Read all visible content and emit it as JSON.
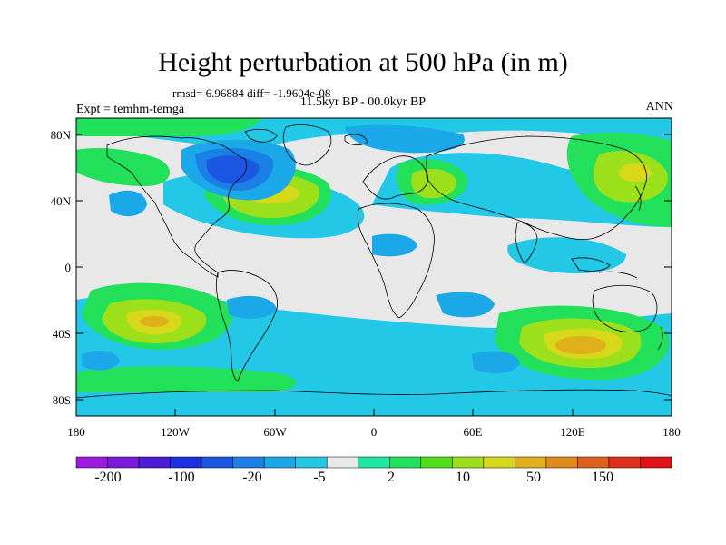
{
  "map": {
    "title": "Height perturbation at 500 hPa (in m)",
    "stats": "rmsd= 6.96884 diff= -1.9604e-08",
    "subtitle": "11.5kyr BP - 00.0kyr BP",
    "left_label": "Expt = temhm-temga",
    "right_label": "ANN",
    "lat_labels": [
      "80N",
      "40N",
      "0",
      "40S",
      "80S"
    ],
    "lon_labels": [
      "180",
      "120W",
      "60W",
      "0",
      "60E",
      "120E",
      "180"
    ],
    "colorbar": {
      "labels": [
        "-200",
        "-100",
        "-20",
        "-5",
        "2",
        "10",
        "50",
        "150"
      ],
      "colors": [
        "#9d1be0",
        "#7a1bdc",
        "#4b1bd6",
        "#1b2ee0",
        "#1b57e3",
        "#1b80e6",
        "#1ba8e8",
        "#22c8e6",
        "#e8e8e8",
        "#1fe6a0",
        "#22e05a",
        "#4fe01b",
        "#9be01b",
        "#d8d81b",
        "#e0b01b",
        "#e08a1b",
        "#e0601b",
        "#e0301b",
        "#e0111b"
      ]
    }
  }
}
